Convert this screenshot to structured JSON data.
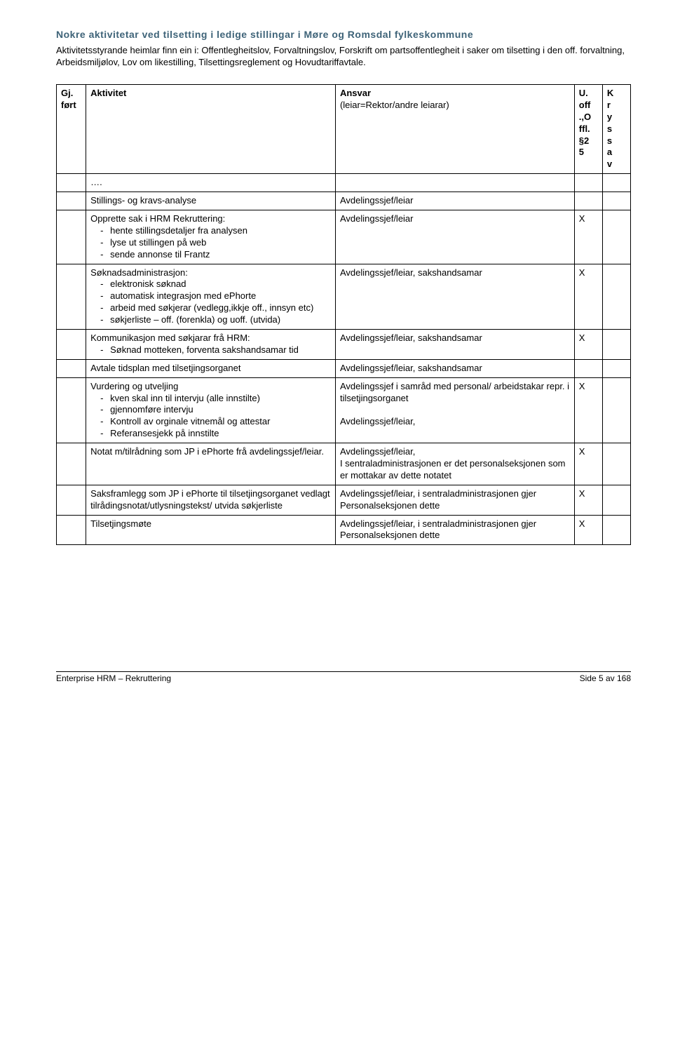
{
  "title": "Nokre aktivitetar ved tilsetting i ledige stillingar i Møre og Romsdal fylkeskommune",
  "intro": "Aktivitetsstyrande heimlar finn ein i: Offentlegheitslov, Forvaltningslov, Forskrift om partsoffentlegheit i saker om tilsetting i den off. forvaltning, Arbeidsmiljølov, Lov om likestilling, Tilsettingsreglement og Hovudtariffavtale.",
  "table": {
    "header": {
      "c1_l1": "Gj.",
      "c1_l2": "ført",
      "c2": "Aktivitet",
      "c3_l1": "Ansvar",
      "c3_l2": "(leiar=Rektor/andre leiarar)",
      "c4_l1": "U.",
      "c4_l2": "off",
      "c4_l3": ".,O",
      "c4_l4": "ffl.",
      "c4_l5": "§2",
      "c4_l6": "5",
      "c5_l1": "K",
      "c5_l2": "r",
      "c5_l3": "y",
      "c5_l4": "s",
      "c5_l5": "s",
      "c5_l6": "a",
      "c5_l7": "v"
    },
    "rows": [
      {
        "activity_text": "….",
        "ansvar": "",
        "uoff": "",
        "kryss": ""
      },
      {
        "activity_text": "Stillings- og kravs-analyse",
        "ansvar": "Avdelingssjef/leiar",
        "uoff": "",
        "kryss": ""
      },
      {
        "activity_lead": "Opprette sak i HRM Rekruttering:",
        "items": [
          "hente stillingsdetaljer fra analysen",
          "lyse ut stillingen på web",
          "sende annonse til Frantz"
        ],
        "ansvar": "Avdelingssjef/leiar",
        "uoff": "X",
        "kryss": ""
      },
      {
        "activity_lead": "Søknadsadministrasjon:",
        "items": [
          "elektronisk søknad",
          "automatisk integrasjon med ePhorte",
          "arbeid med søkjerar (vedlegg,ikkje off., innsyn etc)",
          "søkjerliste – off. (forenkla) og uoff. (utvida)"
        ],
        "ansvar": "Avdelingssjef/leiar, sakshandsamar",
        "uoff": "X",
        "kryss": ""
      },
      {
        "activity_lead": "Kommunikasjon med søkjarar frå HRM:",
        "items": [
          "Søknad motteken, forventa sakshandsamar tid"
        ],
        "ansvar": "Avdelingssjef/leiar, sakshandsamar",
        "uoff": "X",
        "kryss": ""
      },
      {
        "activity_text": "Avtale tidsplan med tilsetjingsorganet",
        "ansvar": "Avdelingssjef/leiar, sakshandsamar",
        "uoff": "",
        "kryss": ""
      },
      {
        "activity_lead": "Vurdering og utveljing",
        "items": [
          "kven skal inn til intervju (alle innstilte)",
          "gjennomføre intervju",
          "Kontroll av orginale vitnemål og attestar",
          "Referansesjekk på innstilte"
        ],
        "ansvar_lines": [
          "Avdelingssjef i samråd med personal/ arbeidstakar repr.  i tilsetjingsorganet",
          "",
          "Avdelingssjef/leiar,"
        ],
        "uoff": "X",
        "kryss": ""
      },
      {
        "activity_text": "Notat m/tilrådning som JP i ePhorte frå avdelingssjef/leiar.",
        "ansvar_lines": [
          "Avdelingssjef/leiar,",
          "I sentraladministrasjonen er det personalseksjonen som er mottakar av dette notatet"
        ],
        "uoff": "X",
        "kryss": ""
      },
      {
        "activity_text": "Saksframlegg som JP i ePhorte til tilsetjingsorganet vedlagt tilrådingsnotat/utlysningstekst/ utvida søkjerliste",
        "ansvar_lines": [
          "Avdelingssjef/leiar, i sentraladministrasjonen gjer Personalseksjonen dette"
        ],
        "uoff": "X",
        "kryss": ""
      },
      {
        "activity_text": "Tilsetjingsmøte",
        "ansvar_lines": [
          "Avdelingssjef/leiar, i sentraladministrasjonen gjer Personalseksjonen dette"
        ],
        "uoff": "X",
        "kryss": ""
      }
    ]
  },
  "footer": {
    "left": "Enterprise HRM – Rekruttering",
    "right": "Side 5 av 168"
  }
}
